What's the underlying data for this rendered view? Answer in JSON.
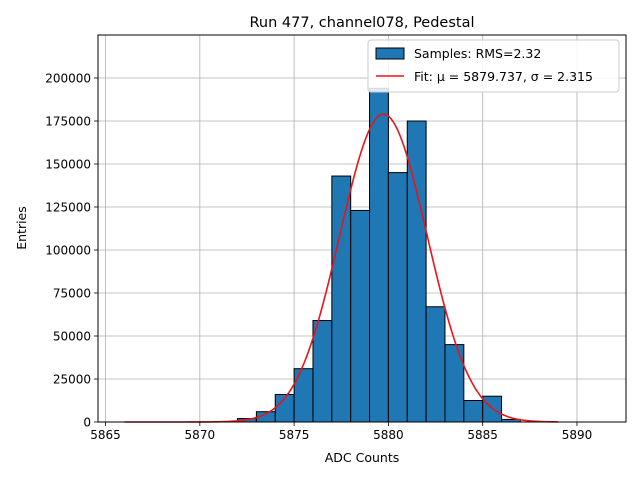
{
  "chart_data": {
    "type": "bar",
    "title": "Run 477, channel078, Pedestal",
    "xlabel": "ADC Counts",
    "ylabel": "Entries",
    "xlim": [
      5864.6,
      5892.6
    ],
    "ylim": [
      0,
      225000
    ],
    "xticks": [
      5865,
      5870,
      5875,
      5880,
      5885,
      5890
    ],
    "xtick_labels": [
      "5865",
      "5870",
      "5875",
      "5880",
      "5885",
      "5890"
    ],
    "yticks": [
      0,
      25000,
      50000,
      75000,
      100000,
      125000,
      150000,
      175000,
      200000
    ],
    "ytick_labels": [
      "0",
      "25000",
      "50000",
      "75000",
      "100000",
      "125000",
      "150000",
      "175000",
      "200000"
    ],
    "grid": true,
    "legend_position": "upper-right",
    "histogram": {
      "name": "Samples: RMS=2.32",
      "color": "#1f77b4",
      "edge_color": "#000000",
      "bin_edges": [
        5872,
        5873,
        5874,
        5875,
        5876,
        5877,
        5878,
        5879,
        5880,
        5881,
        5882,
        5883,
        5884,
        5885,
        5886,
        5887
      ],
      "counts": [
        2000,
        6000,
        16000,
        31000,
        59000,
        143000,
        123000,
        194000,
        145000,
        175000,
        67000,
        45000,
        12500,
        15000,
        1500
      ]
    },
    "fit": {
      "name": "Fit: μ = 5879.737, σ = 2.315",
      "color": "#e8141c",
      "mu": 5879.737,
      "sigma": 2.315,
      "amplitude": 179000,
      "x_range": [
        5866,
        5889
      ]
    }
  }
}
